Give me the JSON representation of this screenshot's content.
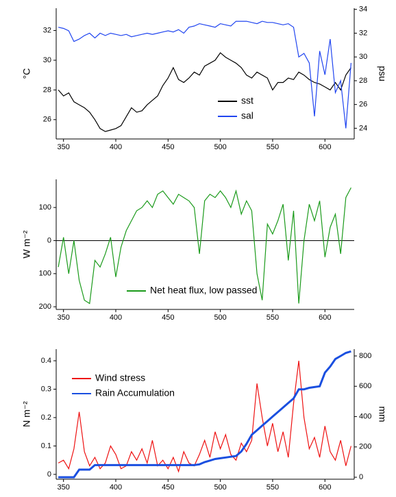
{
  "chart_data": [
    {
      "type": "line",
      "x": [
        345,
        350,
        355,
        360,
        365,
        370,
        375,
        380,
        385,
        390,
        395,
        400,
        405,
        410,
        415,
        420,
        425,
        430,
        435,
        440,
        445,
        450,
        455,
        460,
        465,
        470,
        475,
        480,
        485,
        490,
        495,
        500,
        505,
        510,
        515,
        520,
        525,
        530,
        535,
        540,
        545,
        550,
        555,
        560,
        565,
        570,
        575,
        580,
        585,
        590,
        595,
        600,
        605,
        610,
        615,
        620,
        625
      ],
      "xlim": [
        343,
        628
      ],
      "xticks": [
        350,
        400,
        450,
        500,
        550,
        600
      ],
      "ylabel": "°C",
      "ylim": [
        24.7,
        33.5
      ],
      "yticks": [
        26,
        28,
        30,
        32
      ],
      "y2label": "psu",
      "y2lim": [
        23.1,
        34.1
      ],
      "y2ticks": [
        24,
        26,
        28,
        30,
        32,
        34
      ],
      "series": [
        {
          "name": "sst",
          "color": "#000000",
          "values": [
            28.0,
            27.6,
            27.8,
            27.2,
            27.0,
            26.8,
            26.5,
            26.0,
            25.4,
            25.2,
            25.3,
            25.4,
            25.6,
            26.2,
            26.8,
            26.5,
            26.6,
            27.0,
            27.3,
            27.6,
            28.3,
            28.8,
            29.5,
            28.7,
            28.5,
            28.8,
            29.2,
            29.0,
            29.6,
            29.8,
            30.0,
            30.5,
            30.2,
            30.0,
            29.8,
            29.5,
            29.0,
            28.8,
            29.2,
            29.0,
            28.8,
            28.0,
            28.5,
            28.5,
            28.8,
            28.7,
            29.2,
            29.0,
            28.7,
            28.5,
            28.4,
            28.2,
            28.0,
            28.5,
            28.0,
            29.0,
            29.5
          ]
        },
        {
          "name": "sal",
          "color": "#1f44f0",
          "axis": "y2",
          "values": [
            32.5,
            32.4,
            32.2,
            31.3,
            31.5,
            31.8,
            32.0,
            31.6,
            32.0,
            31.8,
            32.0,
            31.9,
            31.8,
            31.9,
            31.7,
            31.8,
            31.9,
            32.0,
            31.9,
            32.0,
            32.1,
            32.2,
            32.1,
            32.3,
            32.0,
            32.5,
            32.6,
            32.8,
            32.7,
            32.6,
            32.5,
            32.8,
            32.7,
            32.6,
            33.0,
            33.0,
            33.0,
            32.9,
            32.8,
            33.0,
            32.9,
            32.9,
            32.8,
            32.7,
            32.8,
            32.5,
            30.0,
            30.3,
            29.5,
            25.0,
            30.5,
            28.5,
            31.5,
            27.0,
            28.0,
            24.0,
            29.5
          ]
        }
      ]
    },
    {
      "type": "line",
      "x": [
        345,
        350,
        355,
        360,
        365,
        370,
        375,
        380,
        385,
        390,
        395,
        400,
        405,
        410,
        415,
        420,
        425,
        430,
        435,
        440,
        445,
        450,
        455,
        460,
        465,
        470,
        475,
        480,
        485,
        490,
        495,
        500,
        505,
        510,
        515,
        520,
        525,
        530,
        535,
        540,
        545,
        550,
        555,
        560,
        565,
        570,
        575,
        580,
        585,
        590,
        595,
        600,
        605,
        610,
        615,
        620,
        625
      ],
      "xlim": [
        343,
        628
      ],
      "xticks": [
        350,
        400,
        450,
        500,
        550,
        600
      ],
      "ylabel": "W m⁻²",
      "ylim": [
        -208,
        185
      ],
      "yticks": [
        {
          "value": -200,
          "label": "200"
        },
        {
          "value": -100,
          "label": "100"
        },
        0,
        100
      ],
      "hline": 0,
      "series": [
        {
          "name": "Net heat flux, low passed",
          "color": "#1a9a1a",
          "values": [
            -80,
            10,
            -100,
            0,
            -120,
            -180,
            -190,
            -60,
            -80,
            -40,
            10,
            -110,
            -20,
            30,
            60,
            90,
            100,
            120,
            100,
            140,
            150,
            130,
            110,
            140,
            130,
            120,
            100,
            -40,
            120,
            140,
            130,
            150,
            130,
            100,
            150,
            80,
            120,
            90,
            -100,
            -180,
            50,
            20,
            60,
            110,
            -60,
            90,
            -190,
            0,
            110,
            60,
            120,
            -50,
            40,
            80,
            -40,
            130,
            160
          ]
        }
      ]
    },
    {
      "type": "line",
      "x": [
        345,
        350,
        355,
        360,
        365,
        370,
        375,
        380,
        385,
        390,
        395,
        400,
        405,
        410,
        415,
        420,
        425,
        430,
        435,
        440,
        445,
        450,
        455,
        460,
        465,
        470,
        475,
        480,
        485,
        490,
        495,
        500,
        505,
        510,
        515,
        520,
        525,
        530,
        535,
        540,
        545,
        550,
        555,
        560,
        565,
        570,
        575,
        580,
        585,
        590,
        595,
        600,
        605,
        610,
        615,
        620,
        625
      ],
      "xlim": [
        343,
        628
      ],
      "xticks": [
        350,
        400,
        450,
        500,
        550,
        600
      ],
      "ylabel": "N m⁻²",
      "ylim": [
        -0.017,
        0.441
      ],
      "yticks": [
        0.0,
        0.1,
        0.2,
        0.3,
        0.4
      ],
      "y2label": "mm",
      "y2lim": [
        -13,
        845
      ],
      "y2ticks": [
        0,
        200,
        400,
        600,
        800
      ],
      "series": [
        {
          "name": "Wind stress",
          "color": "#ee1111",
          "values": [
            0.04,
            0.05,
            0.02,
            0.09,
            0.22,
            0.08,
            0.03,
            0.06,
            0.02,
            0.04,
            0.1,
            0.07,
            0.02,
            0.03,
            0.08,
            0.05,
            0.09,
            0.04,
            0.12,
            0.03,
            0.05,
            0.02,
            0.06,
            0.01,
            0.08,
            0.04,
            0.03,
            0.07,
            0.12,
            0.06,
            0.15,
            0.09,
            0.14,
            0.07,
            0.05,
            0.11,
            0.08,
            0.12,
            0.32,
            0.2,
            0.1,
            0.18,
            0.08,
            0.15,
            0.06,
            0.25,
            0.4,
            0.2,
            0.09,
            0.13,
            0.06,
            0.17,
            0.08,
            0.05,
            0.12,
            0.03,
            0.1
          ]
        },
        {
          "name": "Rain Accumulation",
          "color": "#1a4fe0",
          "axis": "y2",
          "values": [
            0,
            0,
            0,
            0,
            50,
            50,
            50,
            80,
            80,
            80,
            80,
            80,
            80,
            80,
            80,
            80,
            80,
            80,
            80,
            80,
            80,
            80,
            80,
            80,
            80,
            80,
            80,
            85,
            100,
            110,
            120,
            125,
            130,
            135,
            140,
            170,
            220,
            280,
            310,
            340,
            370,
            400,
            430,
            460,
            490,
            520,
            580,
            580,
            590,
            595,
            600,
            690,
            730,
            780,
            800,
            820,
            830
          ]
        }
      ]
    }
  ]
}
